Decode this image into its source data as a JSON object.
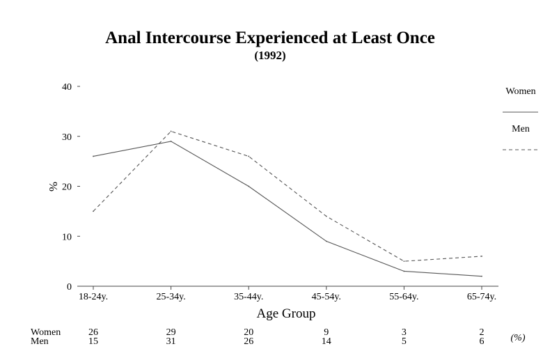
{
  "chart_data": {
    "type": "line",
    "title": "Anal Intercourse Experienced at Least Once",
    "subtitle": "(1992)",
    "xlabel": "Age Group",
    "ylabel": "%",
    "categories": [
      "18-24y.",
      "25-34y.",
      "35-44y.",
      "45-54y.",
      "55-64y.",
      "65-74y."
    ],
    "ylim": [
      0,
      40
    ],
    "yticks": [
      "0",
      "10",
      "20",
      "30",
      "40"
    ],
    "grid": false,
    "legend_position": "right",
    "series": [
      {
        "name": "Women",
        "values": [
          26,
          29,
          20,
          9,
          3,
          2
        ],
        "style": "solid",
        "color": "#555555"
      },
      {
        "name": "Men",
        "values": [
          15,
          31,
          26,
          14,
          5,
          6
        ],
        "style": "dashed",
        "color": "#555555"
      }
    ],
    "table": {
      "unit": "(%)",
      "rows": [
        {
          "label": "Women",
          "values": [
            "26",
            "29",
            "20",
            "9",
            "3",
            "2"
          ]
        },
        {
          "label": "Men",
          "values": [
            "15",
            "31",
            "26",
            "14",
            "5",
            "6"
          ]
        }
      ]
    }
  }
}
